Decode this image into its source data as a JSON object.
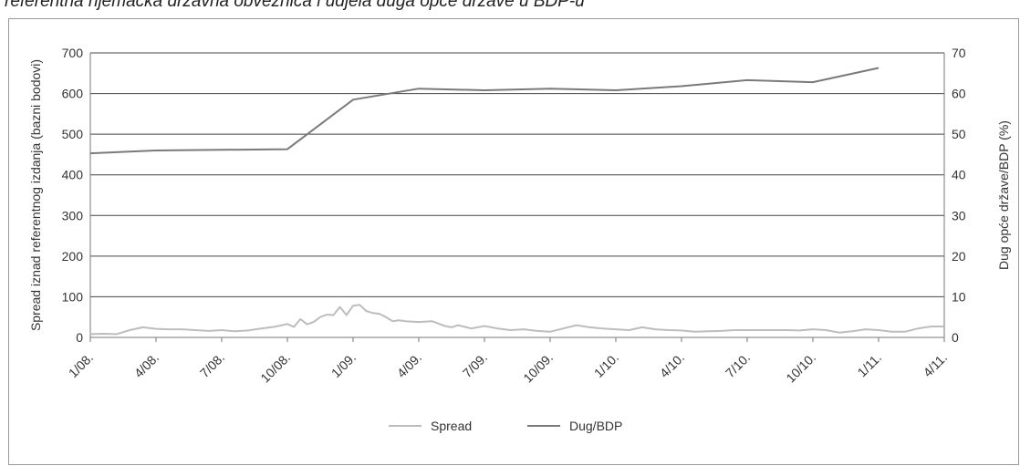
{
  "heading": "referentna njemačka državna obveznica i udjela duga opće države u BDP-u",
  "chart_data": {
    "type": "line",
    "y_left": {
      "label": "Spread iznad referentnog izdanja (bazni bodovi)",
      "range": [
        0,
        700
      ],
      "ticks": [
        0,
        100,
        200,
        300,
        400,
        500,
        600,
        700
      ]
    },
    "y_right": {
      "label": "Dug opće države/BDP (%)",
      "range": [
        0,
        70
      ],
      "ticks": [
        0,
        10,
        20,
        30,
        40,
        50,
        60,
        70
      ]
    },
    "x_ticks": [
      "1/08.",
      "4/08.",
      "7/08.",
      "10/08.",
      "1/09.",
      "4/09.",
      "7/09.",
      "10/09.",
      "1/10.",
      "4/10.",
      "7/10.",
      "10/10.",
      "1/11.",
      "4/11."
    ],
    "grid": true,
    "legend_position": "bottom",
    "series": [
      {
        "name": "Spread",
        "axis": "left",
        "color": "#bdbdbd",
        "x": [
          0,
          0.2,
          0.4,
          0.6,
          0.8,
          1,
          1.2,
          1.4,
          1.6,
          1.8,
          2,
          2.2,
          2.4,
          2.6,
          2.8,
          3,
          3.1,
          3.2,
          3.3,
          3.4,
          3.5,
          3.6,
          3.7,
          3.8,
          3.9,
          4,
          4.1,
          4.2,
          4.3,
          4.4,
          4.5,
          4.6,
          4.7,
          4.8,
          5,
          5.2,
          5.4,
          5.5,
          5.6,
          5.8,
          6,
          6.2,
          6.4,
          6.6,
          6.8,
          7,
          7.2,
          7.4,
          7.6,
          7.8,
          8,
          8.2,
          8.4,
          8.6,
          8.8,
          9,
          9.2,
          9.4,
          9.6,
          9.8,
          10,
          10.2,
          10.4,
          10.6,
          10.8,
          11,
          11.2,
          11.4,
          11.6,
          11.8,
          12,
          12.2,
          12.4,
          12.6,
          12.8,
          13
        ],
        "values": [
          8,
          9,
          8,
          18,
          25,
          21,
          20,
          20,
          18,
          16,
          18,
          15,
          17,
          22,
          26,
          33,
          26,
          45,
          32,
          38,
          50,
          56,
          55,
          75,
          55,
          78,
          80,
          65,
          60,
          58,
          50,
          40,
          42,
          40,
          38,
          40,
          28,
          25,
          30,
          22,
          28,
          22,
          18,
          20,
          16,
          14,
          22,
          30,
          25,
          22,
          20,
          18,
          25,
          20,
          18,
          17,
          14,
          15,
          16,
          18,
          18,
          18,
          18,
          18,
          17,
          20,
          18,
          12,
          15,
          20,
          18,
          14,
          14,
          22,
          27,
          27
        ]
      },
      {
        "name": "Dug/BDP",
        "axis": "right",
        "color": "#7a7a7a",
        "x": [
          0,
          1,
          3,
          4,
          5,
          6,
          7,
          8,
          9,
          10,
          11,
          12
        ],
        "values": [
          45.3,
          46.0,
          46.3,
          58.5,
          61.2,
          60.8,
          61.2,
          60.8,
          61.8,
          63.3,
          62.8,
          66.3
        ]
      }
    ]
  }
}
